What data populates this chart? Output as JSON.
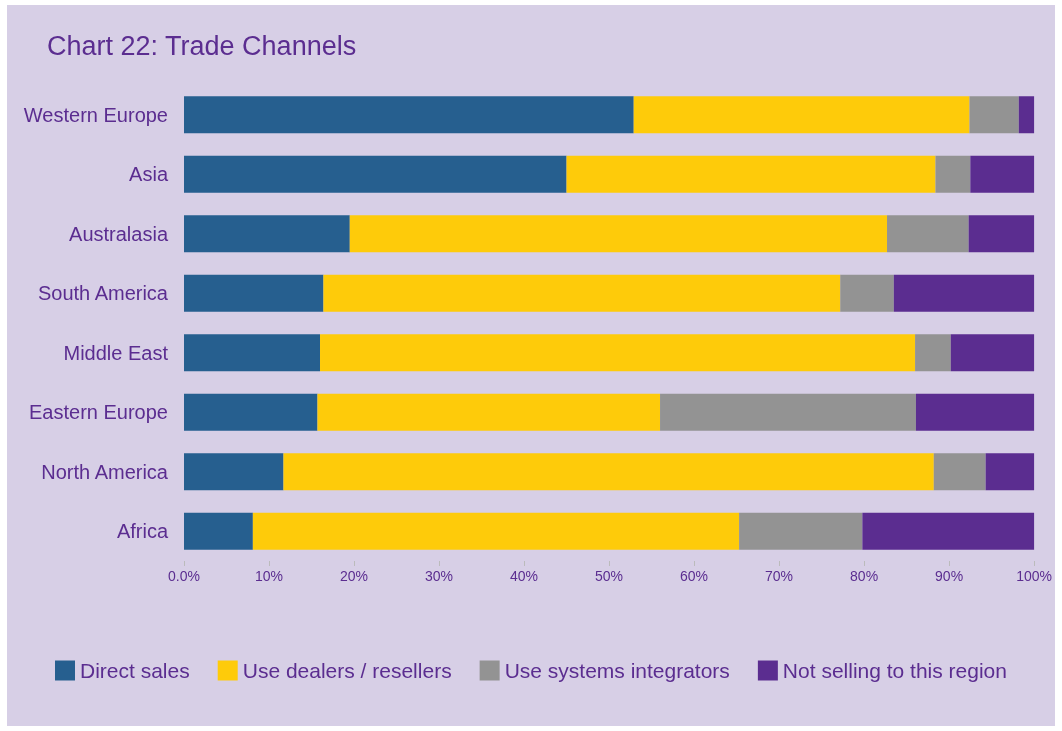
{
  "chart_data": {
    "type": "bar",
    "title": "Chart 22: Trade Channels",
    "orientation": "horizontal",
    "stacked": true,
    "categories": [
      "Western Europe",
      "Asia",
      "Australasia",
      "South America",
      "Middle East",
      "Eastern Europe",
      "North America",
      "Africa"
    ],
    "series": [
      {
        "name": "Direct sales",
        "color": "#265f8f",
        "values": [
          52.9,
          45.0,
          19.5,
          16.4,
          16.0,
          15.7,
          11.7,
          8.1
        ]
      },
      {
        "name": "Use dealers / resellers",
        "color": "#fecb0a",
        "values": [
          39.5,
          43.4,
          63.2,
          60.8,
          70.0,
          40.3,
          76.5,
          57.2
        ]
      },
      {
        "name": "Use systems integrators",
        "color": "#939393",
        "values": [
          5.8,
          4.1,
          9.6,
          6.3,
          4.2,
          30.1,
          6.1,
          14.5
        ]
      },
      {
        "name": "Not selling to this region",
        "color": "#5b2d90",
        "values": [
          1.8,
          7.5,
          7.7,
          16.5,
          9.8,
          13.9,
          5.7,
          20.2
        ]
      }
    ],
    "xlim": [
      0,
      100
    ],
    "xticks": [
      {
        "value": 0,
        "label": "0.0%"
      },
      {
        "value": 10,
        "label": "10%"
      },
      {
        "value": 20,
        "label": "20%"
      },
      {
        "value": 30,
        "label": "30%"
      },
      {
        "value": 40,
        "label": "40%"
      },
      {
        "value": 50,
        "label": "50%"
      },
      {
        "value": 60,
        "label": "60%"
      },
      {
        "value": 70,
        "label": "70%"
      },
      {
        "value": 80,
        "label": "80%"
      },
      {
        "value": 90,
        "label": "90%"
      },
      {
        "value": 100,
        "label": "100%"
      }
    ],
    "grid": false,
    "legend": "bottom"
  }
}
